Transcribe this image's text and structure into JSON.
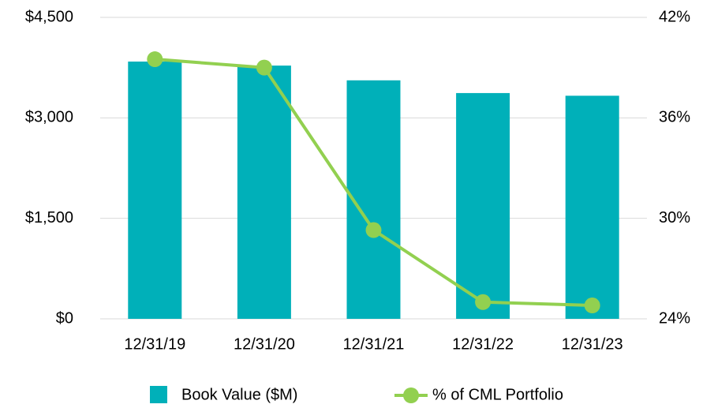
{
  "chart_data": {
    "type": "bar",
    "categories": [
      "12/31/19",
      "12/31/20",
      "12/31/21",
      "12/31/22",
      "12/31/23"
    ],
    "series": [
      {
        "name": "Book Value ($M)",
        "type": "bar",
        "color": "#00b0b9",
        "values": [
          3840,
          3780,
          3560,
          3370,
          3330
        ]
      },
      {
        "name": "% of CML Portfolio",
        "type": "line",
        "axis": "y2",
        "color": "#92d050",
        "values": [
          39.5,
          39.0,
          29.3,
          25.0,
          24.8
        ]
      }
    ],
    "ylim": [
      0,
      4500
    ],
    "yticks": [
      {
        "value": 0,
        "label": "$0"
      },
      {
        "value": 1500,
        "label": "$1,500"
      },
      {
        "value": 3000,
        "label": "$3,000"
      },
      {
        "value": 4500,
        "label": "$4,500"
      }
    ],
    "y2lim": [
      24,
      42
    ],
    "y2ticks": [
      {
        "value": 24,
        "label": "24%"
      },
      {
        "value": 30,
        "label": "30%"
      },
      {
        "value": 36,
        "label": "36%"
      },
      {
        "value": 42,
        "label": "42%"
      }
    ],
    "grid": true,
    "legend": "bottom"
  }
}
